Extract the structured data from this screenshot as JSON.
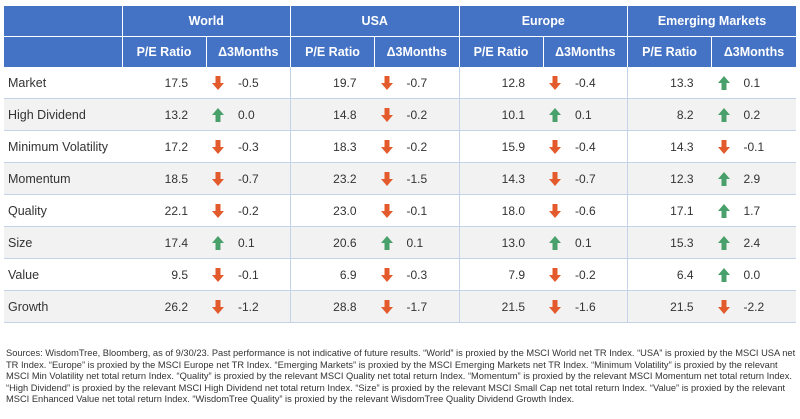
{
  "colors": {
    "header_bg": "#4472c4",
    "up_arrow": "#4aa06a",
    "down_arrow": "#e35a2c"
  },
  "regions": [
    "World",
    "USA",
    "Europe",
    "Emerging Markets"
  ],
  "subheaders": {
    "pe": "P/E Ratio",
    "delta": "Δ3Months"
  },
  "rows": [
    {
      "label": "Market",
      "cells": [
        {
          "pe": "17.5",
          "delta": "-0.5",
          "dir": "down"
        },
        {
          "pe": "19.7",
          "delta": "-0.7",
          "dir": "down"
        },
        {
          "pe": "12.8",
          "delta": "-0.4",
          "dir": "down"
        },
        {
          "pe": "13.3",
          "delta": "0.1",
          "dir": "up"
        }
      ]
    },
    {
      "label": "High Dividend",
      "cells": [
        {
          "pe": "13.2",
          "delta": "0.0",
          "dir": "up"
        },
        {
          "pe": "14.8",
          "delta": "-0.2",
          "dir": "down"
        },
        {
          "pe": "10.1",
          "delta": "0.1",
          "dir": "up"
        },
        {
          "pe": "8.2",
          "delta": "0.2",
          "dir": "up"
        }
      ]
    },
    {
      "label": "Minimum Volatility",
      "cells": [
        {
          "pe": "17.2",
          "delta": "-0.3",
          "dir": "down"
        },
        {
          "pe": "18.3",
          "delta": "-0.2",
          "dir": "down"
        },
        {
          "pe": "15.9",
          "delta": "-0.4",
          "dir": "down"
        },
        {
          "pe": "14.3",
          "delta": "-0.1",
          "dir": "down"
        }
      ]
    },
    {
      "label": "Momentum",
      "cells": [
        {
          "pe": "18.5",
          "delta": "-0.7",
          "dir": "down"
        },
        {
          "pe": "23.2",
          "delta": "-1.5",
          "dir": "down"
        },
        {
          "pe": "14.3",
          "delta": "-0.7",
          "dir": "down"
        },
        {
          "pe": "12.3",
          "delta": "2.9",
          "dir": "up"
        }
      ]
    },
    {
      "label": "Quality",
      "cells": [
        {
          "pe": "22.1",
          "delta": "-0.2",
          "dir": "down"
        },
        {
          "pe": "23.0",
          "delta": "-0.1",
          "dir": "down"
        },
        {
          "pe": "18.0",
          "delta": "-0.6",
          "dir": "down"
        },
        {
          "pe": "17.1",
          "delta": "1.7",
          "dir": "up"
        }
      ]
    },
    {
      "label": "Size",
      "cells": [
        {
          "pe": "17.4",
          "delta": "0.1",
          "dir": "up"
        },
        {
          "pe": "20.6",
          "delta": "0.1",
          "dir": "up"
        },
        {
          "pe": "13.0",
          "delta": "0.1",
          "dir": "up"
        },
        {
          "pe": "15.3",
          "delta": "2.4",
          "dir": "up"
        }
      ]
    },
    {
      "label": "Value",
      "cells": [
        {
          "pe": "9.5",
          "delta": "-0.1",
          "dir": "down"
        },
        {
          "pe": "6.9",
          "delta": "-0.3",
          "dir": "down"
        },
        {
          "pe": "7.9",
          "delta": "-0.2",
          "dir": "down"
        },
        {
          "pe": "6.4",
          "delta": "0.0",
          "dir": "up"
        }
      ]
    },
    {
      "label": "Growth",
      "cells": [
        {
          "pe": "26.2",
          "delta": "-1.2",
          "dir": "down"
        },
        {
          "pe": "28.8",
          "delta": "-1.7",
          "dir": "down"
        },
        {
          "pe": "21.5",
          "delta": "-1.6",
          "dir": "down"
        },
        {
          "pe": "21.5",
          "delta": "-2.2",
          "dir": "down"
        }
      ]
    }
  ],
  "footnote": "Sources: WisdomTree, Bloomberg, as of 9/30/23. Past performance is not indicative of future results. “World” is proxied by the MSCI World net TR Index. “USA” is proxied by the MSCI USA net TR Index. “Europe” is proxied by the MSCI Europe net TR Index. “Emerging Markets” is proxied by the MSCI Emerging Markets net TR Index. “Minimum Volatility” is proxied by the relevant MSCI Min Volatility net total return Index. “Quality” is proxied by the relevant MSCI Quality net total return Index. “Momentum” is proxied by the relevant MSCI Momentum net total return Index. “High Dividend” is proxied by the relevant MSCI High Dividend net total return Index. “Size” is proxied by the relevant MSCI Small Cap net total return Index. “Value” is proxied by the relevant MSCI Enhanced Value net total return Index. “WisdomTree Quality” is proxied by the relevant WisdomTree Quality Dividend Growth Index."
}
